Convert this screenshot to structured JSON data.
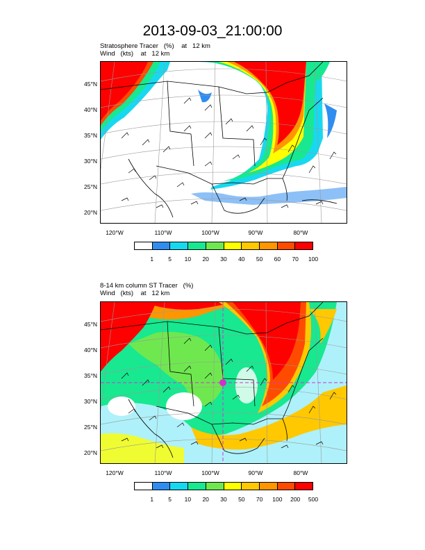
{
  "title": "2013-09-03_21:00:00",
  "palette": [
    "#ffffff",
    "#2f8df0",
    "#18d8f0",
    "#18e890",
    "#6fe84f",
    "#ffff00",
    "#ffc800",
    "#ff9600",
    "#ff4b00",
    "#ff0000"
  ],
  "land_color": "#ffffff",
  "line_color": "#000000",
  "grid_color": "#999999",
  "vortex_color": "#d030d0",
  "panels": [
    {
      "caption_line1": "Stratosphere Tracer   (%)    at   12 km",
      "caption_line2": "Wind   (kts)    at   12 km",
      "lat_labels": [
        "45°N",
        "40°N",
        "35°N",
        "30°N",
        "25°N",
        "20°N"
      ],
      "lon_labels": [
        "120°W",
        "110°W",
        "100°W",
        "90°W",
        "80°W"
      ],
      "colorbar_labels": [
        "1",
        "5",
        "10",
        "20",
        "30",
        "40",
        "50",
        "60",
        "70",
        "100"
      ]
    },
    {
      "caption_line1": "8-14 km column ST Tracer   (%)",
      "caption_line2": "Wind   (kts)    at   12 km",
      "lat_labels": [
        "45°N",
        "40°N",
        "35°N",
        "30°N",
        "25°N",
        "20°N"
      ],
      "lon_labels": [
        "120°W",
        "110°W",
        "100°W",
        "90°W",
        "80°W"
      ],
      "colorbar_labels": [
        "1",
        "5",
        "10",
        "20",
        "30",
        "50",
        "70",
        "100",
        "200",
        "500"
      ]
    }
  ]
}
